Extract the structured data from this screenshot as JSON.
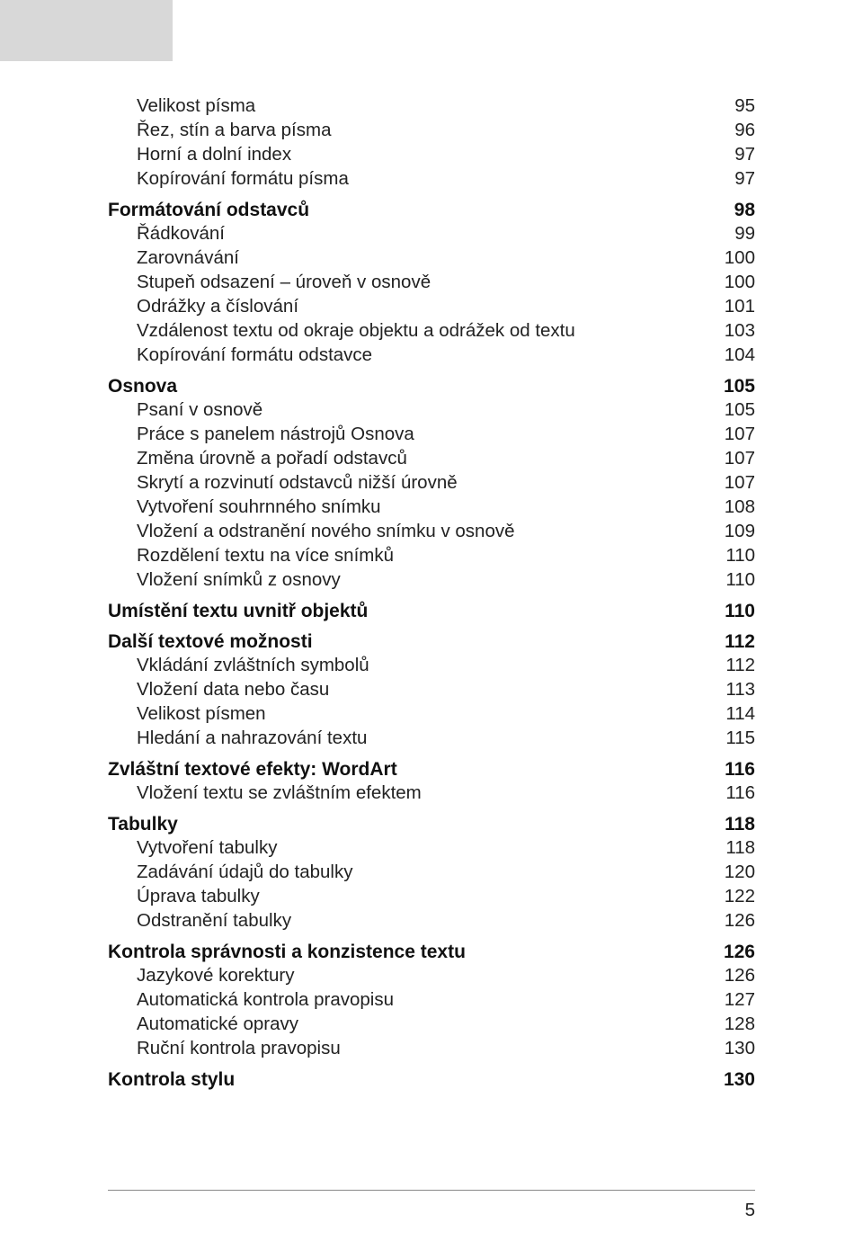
{
  "page_number": "5",
  "entries": [
    {
      "type": "sub",
      "first": true,
      "label": "Velikost písma",
      "page": "95"
    },
    {
      "type": "sub",
      "label": "Řez, stín a barva písma",
      "page": "96"
    },
    {
      "type": "sub",
      "label": "Horní a dolní index",
      "page": "97"
    },
    {
      "type": "sub",
      "label": "Kopírování formátu písma",
      "page": "97"
    },
    {
      "type": "section",
      "label": "Formátování odstavců",
      "page": "98"
    },
    {
      "type": "sub",
      "label": "Řádkování",
      "page": "99"
    },
    {
      "type": "sub",
      "label": "Zarovnávání",
      "page": "100"
    },
    {
      "type": "sub",
      "label": "Stupeň odsazení – úroveň v osnově",
      "page": "100"
    },
    {
      "type": "sub",
      "label": "Odrážky a číslování",
      "page": "101"
    },
    {
      "type": "sub",
      "label": "Vzdálenost textu od okraje objektu a odrážek od textu",
      "page": "103"
    },
    {
      "type": "sub",
      "label": "Kopírování formátu odstavce",
      "page": "104"
    },
    {
      "type": "section",
      "label": "Osnova",
      "page": "105"
    },
    {
      "type": "sub",
      "label": "Psaní v osnově",
      "page": "105"
    },
    {
      "type": "sub",
      "label": "Práce s panelem nástrojů Osnova",
      "page": "107"
    },
    {
      "type": "sub",
      "label": "Změna úrovně a pořadí odstavců",
      "page": "107"
    },
    {
      "type": "sub",
      "label": "Skrytí a rozvinutí odstavců nižší úrovně",
      "page": "107"
    },
    {
      "type": "sub",
      "label": "Vytvoření souhrnného snímku",
      "page": "108"
    },
    {
      "type": "sub",
      "label": "Vložení a odstranění nového snímku v osnově",
      "page": "109"
    },
    {
      "type": "sub",
      "label": "Rozdělení textu na více snímků",
      "page": "110"
    },
    {
      "type": "sub",
      "label": "Vložení snímků z osnovy",
      "page": "110"
    },
    {
      "type": "section",
      "label": "Umístění textu uvnitř objektů",
      "page": "110"
    },
    {
      "type": "section",
      "label": "Další textové možnosti",
      "page": "112"
    },
    {
      "type": "sub",
      "label": "Vkládání zvláštních symbolů",
      "page": "112"
    },
    {
      "type": "sub",
      "label": "Vložení data nebo času",
      "page": "113"
    },
    {
      "type": "sub",
      "label": "Velikost písmen",
      "page": "114"
    },
    {
      "type": "sub",
      "label": "Hledání a nahrazování textu",
      "page": "115"
    },
    {
      "type": "section",
      "label": "Zvláštní textové efekty: WordArt",
      "page": "116"
    },
    {
      "type": "sub",
      "label": "Vložení textu se zvláštním efektem",
      "page": "116"
    },
    {
      "type": "section",
      "label": "Tabulky",
      "page": "118"
    },
    {
      "type": "sub",
      "label": "Vytvoření tabulky",
      "page": "118"
    },
    {
      "type": "sub",
      "label": "Zadávání údajů do tabulky",
      "page": "120"
    },
    {
      "type": "sub",
      "label": "Úprava tabulky",
      "page": "122"
    },
    {
      "type": "sub",
      "label": "Odstranění tabulky",
      "page": "126"
    },
    {
      "type": "section",
      "label": "Kontrola správnosti a konzistence textu",
      "page": "126"
    },
    {
      "type": "sub",
      "label": "Jazykové korektury",
      "page": "126"
    },
    {
      "type": "sub",
      "label": "Automatická kontrola pravopisu",
      "page": "127"
    },
    {
      "type": "sub",
      "label": "Automatické opravy",
      "page": "128"
    },
    {
      "type": "sub",
      "label": "Ruční kontrola pravopisu",
      "page": "130"
    },
    {
      "type": "section",
      "label": "Kontrola stylu",
      "page": "130"
    }
  ]
}
